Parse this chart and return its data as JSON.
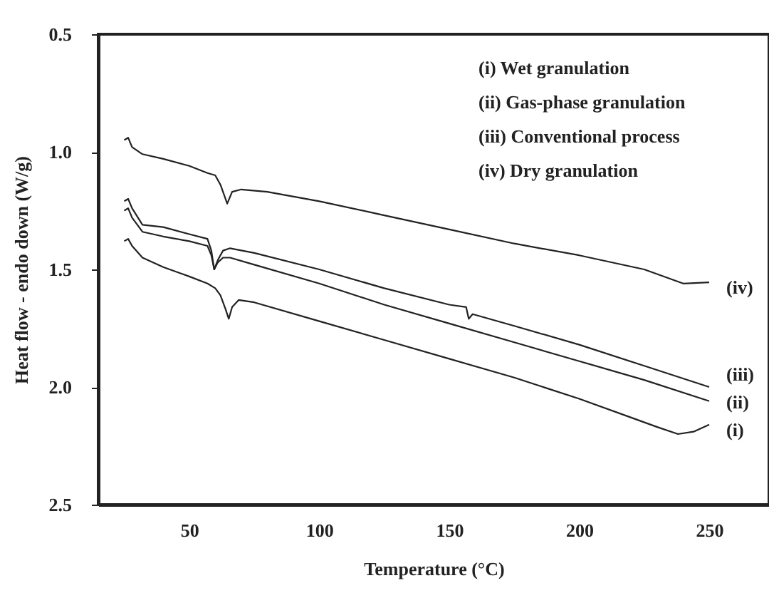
{
  "chart_data": {
    "type": "line",
    "xlabel": "Temperature (°C)",
    "ylabel": "Heat flow - endo down (W/g)",
    "xlim": [
      15,
      273
    ],
    "xticks": [
      50,
      100,
      150,
      200,
      250
    ],
    "ylim": [
      2.5,
      0.5
    ],
    "yticks": [
      {
        "value": 0.5,
        "label": "0.5"
      },
      {
        "value": 1.0,
        "label": "1.0"
      },
      {
        "value": 1.5,
        "label": "1.5"
      },
      {
        "value": 2.0,
        "label": "2.0"
      },
      {
        "value": 2.5,
        "label": "2.5"
      }
    ],
    "grid": false,
    "legend": false,
    "marker": "none",
    "line_style": "solid",
    "annotations": [
      "(i) Wet granulation",
      "(ii) Gas-phase granulation",
      "(iii) Conventional process",
      "(iv) Dry granulation"
    ],
    "series": [
      {
        "name": "(i)",
        "color": "#222222",
        "x": [
          25,
          26.5,
          28,
          32,
          40,
          50,
          57,
          60,
          62,
          64,
          65.2,
          66.5,
          69,
          75,
          100,
          125,
          150,
          175,
          200,
          220,
          230,
          238,
          244,
          250
        ],
        "values": [
          1.38,
          1.37,
          1.4,
          1.45,
          1.49,
          1.53,
          1.56,
          1.58,
          1.61,
          1.67,
          1.71,
          1.66,
          1.63,
          1.64,
          1.72,
          1.8,
          1.88,
          1.96,
          2.05,
          2.13,
          2.17,
          2.2,
          2.19,
          2.16
        ]
      },
      {
        "name": "(ii)",
        "color": "#222222",
        "x": [
          25,
          26.5,
          28,
          32,
          40,
          50,
          57,
          58.5,
          59.6,
          61,
          63,
          65.7,
          75,
          100,
          125,
          150,
          175,
          200,
          225,
          250
        ],
        "values": [
          1.25,
          1.24,
          1.28,
          1.34,
          1.36,
          1.38,
          1.4,
          1.44,
          1.5,
          1.47,
          1.45,
          1.45,
          1.48,
          1.56,
          1.65,
          1.73,
          1.81,
          1.89,
          1.97,
          2.06
        ]
      },
      {
        "name": "(iii)",
        "color": "#222222",
        "x": [
          25,
          26.5,
          28,
          32,
          40,
          50,
          57,
          58.5,
          59.6,
          61,
          63,
          65.7,
          75,
          100,
          125,
          150,
          156.5,
          157.5,
          159,
          175,
          200,
          225,
          250
        ],
        "values": [
          1.21,
          1.2,
          1.24,
          1.31,
          1.32,
          1.35,
          1.37,
          1.42,
          1.5,
          1.46,
          1.42,
          1.41,
          1.43,
          1.5,
          1.58,
          1.65,
          1.66,
          1.71,
          1.69,
          1.74,
          1.82,
          1.91,
          2.0
        ]
      },
      {
        "name": "(iv)",
        "color": "#222222",
        "x": [
          25,
          26.5,
          28,
          32,
          40,
          50,
          57,
          60,
          62,
          64.6,
          66.5,
          70,
          80,
          100,
          125,
          150,
          175,
          200,
          225,
          240,
          250
        ],
        "values": [
          0.95,
          0.94,
          0.98,
          1.01,
          1.03,
          1.06,
          1.09,
          1.1,
          1.14,
          1.22,
          1.17,
          1.16,
          1.17,
          1.21,
          1.27,
          1.33,
          1.39,
          1.44,
          1.5,
          1.56,
          1.555
        ]
      }
    ]
  }
}
